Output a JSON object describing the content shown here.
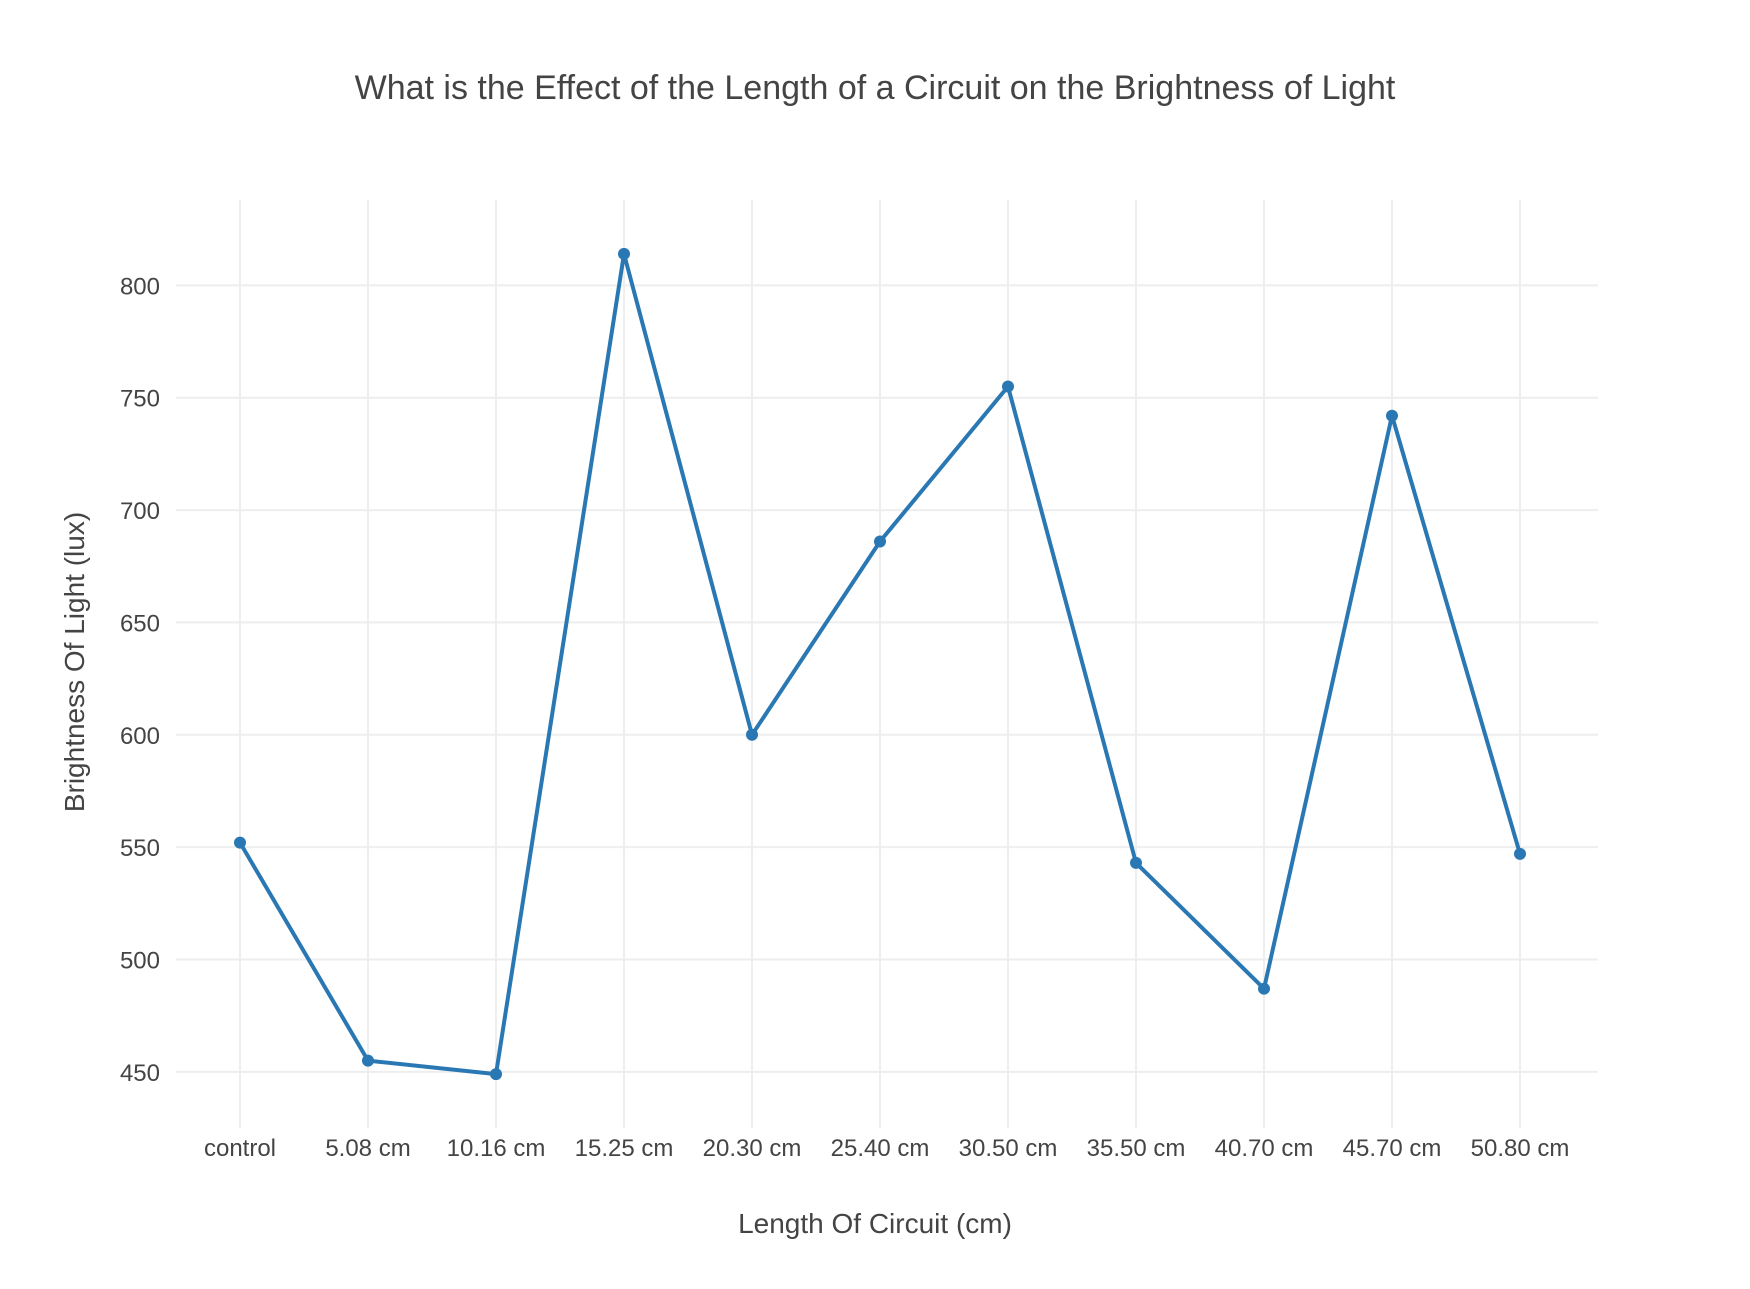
{
  "chart_data": {
    "type": "line",
    "title": "What is the Effect of the Length of a Circuit on the Brightness of Light",
    "xlabel": "Length Of Circuit (cm)",
    "ylabel": "Brightness Of Light (lux)",
    "categories": [
      "control",
      "5.08 cm",
      "10.16 cm",
      "15.25 cm",
      "20.30 cm",
      "25.40 cm",
      "30.50 cm",
      "35.50 cm",
      "40.70 cm",
      "45.70 cm",
      "50.80 cm"
    ],
    "series": [
      {
        "values": [
          552,
          455,
          449,
          814,
          600,
          686,
          755,
          543,
          487,
          742,
          547
        ],
        "color": "#2a78b3"
      }
    ],
    "yticks": [
      450,
      500,
      550,
      600,
      650,
      700,
      750,
      800
    ],
    "ylim": [
      425,
      838
    ],
    "grid": true,
    "legend": "none"
  }
}
